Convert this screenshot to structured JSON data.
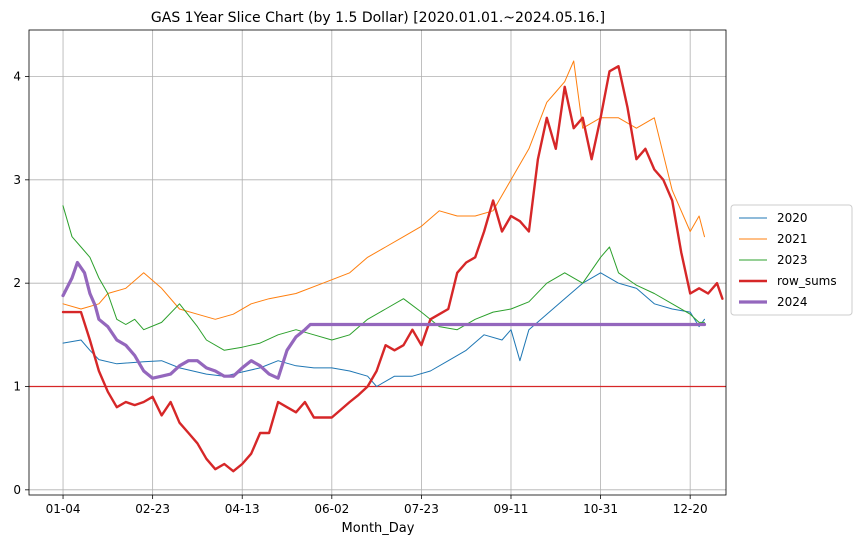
{
  "chart_data": {
    "type": "line",
    "title": "GAS 1Year Slice Chart (by 1.5 Dollar) [2020.01.01.~2024.05.16.]",
    "xlabel": "Month_Day",
    "ylabel": "",
    "x_ticks": [
      "01-04",
      "02-23",
      "04-13",
      "06-02",
      "07-23",
      "09-11",
      "10-31",
      "12-20"
    ],
    "y_ticks": [
      "0",
      "1",
      "2",
      "3",
      "4"
    ],
    "ylim": [
      -0.05,
      4.45
    ],
    "x_range_days": [
      -19,
      370
    ],
    "grid": true,
    "legend_position": "center-right (outside)",
    "reference_line": {
      "y": 1.0,
      "color": "#d62728"
    },
    "series": [
      {
        "name": "2020",
        "color": "#1f77b4",
        "width": 1.0,
        "points": [
          [
            0,
            1.42
          ],
          [
            10,
            1.45
          ],
          [
            15,
            1.35
          ],
          [
            20,
            1.26
          ],
          [
            30,
            1.22
          ],
          [
            45,
            1.24
          ],
          [
            55,
            1.25
          ],
          [
            65,
            1.18
          ],
          [
            80,
            1.12
          ],
          [
            90,
            1.1
          ],
          [
            100,
            1.14
          ],
          [
            110,
            1.18
          ],
          [
            120,
            1.25
          ],
          [
            130,
            1.2
          ],
          [
            140,
            1.18
          ],
          [
            150,
            1.18
          ],
          [
            160,
            1.15
          ],
          [
            170,
            1.1
          ],
          [
            175,
            1.0
          ],
          [
            185,
            1.1
          ],
          [
            195,
            1.1
          ],
          [
            205,
            1.15
          ],
          [
            215,
            1.25
          ],
          [
            225,
            1.35
          ],
          [
            235,
            1.5
          ],
          [
            245,
            1.45
          ],
          [
            250,
            1.55
          ],
          [
            255,
            1.25
          ],
          [
            260,
            1.55
          ],
          [
            270,
            1.7
          ],
          [
            280,
            1.85
          ],
          [
            290,
            2.0
          ],
          [
            300,
            2.1
          ],
          [
            310,
            2.0
          ],
          [
            320,
            1.95
          ],
          [
            330,
            1.8
          ],
          [
            340,
            1.75
          ],
          [
            350,
            1.72
          ],
          [
            355,
            1.58
          ],
          [
            358,
            1.65
          ]
        ]
      },
      {
        "name": "2021",
        "color": "#ff7f0e",
        "width": 1.0,
        "points": [
          [
            0,
            1.8
          ],
          [
            10,
            1.75
          ],
          [
            20,
            1.8
          ],
          [
            25,
            1.9
          ],
          [
            35,
            1.95
          ],
          [
            45,
            2.1
          ],
          [
            55,
            1.95
          ],
          [
            65,
            1.75
          ],
          [
            75,
            1.7
          ],
          [
            85,
            1.65
          ],
          [
            95,
            1.7
          ],
          [
            105,
            1.8
          ],
          [
            115,
            1.85
          ],
          [
            130,
            1.9
          ],
          [
            145,
            2.0
          ],
          [
            160,
            2.1
          ],
          [
            170,
            2.25
          ],
          [
            180,
            2.35
          ],
          [
            190,
            2.45
          ],
          [
            200,
            2.55
          ],
          [
            210,
            2.7
          ],
          [
            220,
            2.65
          ],
          [
            230,
            2.65
          ],
          [
            240,
            2.7
          ],
          [
            250,
            3.0
          ],
          [
            260,
            3.3
          ],
          [
            270,
            3.75
          ],
          [
            275,
            3.85
          ],
          [
            280,
            3.95
          ],
          [
            285,
            4.15
          ],
          [
            290,
            3.5
          ],
          [
            300,
            3.6
          ],
          [
            310,
            3.6
          ],
          [
            320,
            3.5
          ],
          [
            330,
            3.6
          ],
          [
            340,
            2.9
          ],
          [
            350,
            2.5
          ],
          [
            355,
            2.65
          ],
          [
            358,
            2.45
          ]
        ]
      },
      {
        "name": "2023",
        "color": "#2ca02c",
        "width": 1.0,
        "points": [
          [
            0,
            2.75
          ],
          [
            5,
            2.45
          ],
          [
            10,
            2.35
          ],
          [
            15,
            2.25
          ],
          [
            20,
            2.05
          ],
          [
            25,
            1.9
          ],
          [
            30,
            1.65
          ],
          [
            35,
            1.6
          ],
          [
            40,
            1.65
          ],
          [
            45,
            1.55
          ],
          [
            55,
            1.62
          ],
          [
            65,
            1.8
          ],
          [
            75,
            1.58
          ],
          [
            80,
            1.45
          ],
          [
            90,
            1.35
          ],
          [
            100,
            1.38
          ],
          [
            110,
            1.42
          ],
          [
            120,
            1.5
          ],
          [
            130,
            1.55
          ],
          [
            140,
            1.5
          ],
          [
            150,
            1.45
          ],
          [
            160,
            1.5
          ],
          [
            170,
            1.65
          ],
          [
            180,
            1.75
          ],
          [
            190,
            1.85
          ],
          [
            200,
            1.72
          ],
          [
            210,
            1.58
          ],
          [
            220,
            1.55
          ],
          [
            230,
            1.65
          ],
          [
            240,
            1.72
          ],
          [
            250,
            1.75
          ],
          [
            260,
            1.82
          ],
          [
            270,
            2.0
          ],
          [
            280,
            2.1
          ],
          [
            290,
            2.0
          ],
          [
            300,
            2.25
          ],
          [
            305,
            2.35
          ],
          [
            310,
            2.1
          ],
          [
            320,
            1.98
          ],
          [
            330,
            1.9
          ],
          [
            340,
            1.8
          ],
          [
            350,
            1.7
          ],
          [
            355,
            1.62
          ],
          [
            358,
            1.62
          ]
        ]
      },
      {
        "name": "row_sums",
        "color": "#d62728",
        "width": 2.4,
        "points": [
          [
            0,
            1.72
          ],
          [
            10,
            1.72
          ],
          [
            15,
            1.45
          ],
          [
            20,
            1.15
          ],
          [
            25,
            0.95
          ],
          [
            30,
            0.8
          ],
          [
            35,
            0.85
          ],
          [
            40,
            0.82
          ],
          [
            45,
            0.85
          ],
          [
            50,
            0.9
          ],
          [
            55,
            0.72
          ],
          [
            60,
            0.85
          ],
          [
            65,
            0.65
          ],
          [
            70,
            0.55
          ],
          [
            75,
            0.45
          ],
          [
            80,
            0.3
          ],
          [
            85,
            0.2
          ],
          [
            90,
            0.25
          ],
          [
            95,
            0.18
          ],
          [
            100,
            0.25
          ],
          [
            105,
            0.35
          ],
          [
            110,
            0.55
          ],
          [
            115,
            0.55
          ],
          [
            120,
            0.85
          ],
          [
            125,
            0.8
          ],
          [
            130,
            0.75
          ],
          [
            135,
            0.85
          ],
          [
            140,
            0.7
          ],
          [
            145,
            0.7
          ],
          [
            150,
            0.7
          ],
          [
            160,
            0.85
          ],
          [
            165,
            0.92
          ],
          [
            170,
            1.0
          ],
          [
            175,
            1.15
          ],
          [
            180,
            1.4
          ],
          [
            185,
            1.35
          ],
          [
            190,
            1.4
          ],
          [
            195,
            1.55
          ],
          [
            200,
            1.4
          ],
          [
            205,
            1.65
          ],
          [
            210,
            1.7
          ],
          [
            215,
            1.75
          ],
          [
            220,
            2.1
          ],
          [
            225,
            2.2
          ],
          [
            230,
            2.25
          ],
          [
            235,
            2.5
          ],
          [
            240,
            2.8
          ],
          [
            245,
            2.5
          ],
          [
            250,
            2.65
          ],
          [
            255,
            2.6
          ],
          [
            260,
            2.5
          ],
          [
            265,
            3.2
          ],
          [
            270,
            3.6
          ],
          [
            275,
            3.3
          ],
          [
            280,
            3.9
          ],
          [
            285,
            3.5
          ],
          [
            290,
            3.6
          ],
          [
            295,
            3.2
          ],
          [
            300,
            3.6
          ],
          [
            305,
            4.05
          ],
          [
            310,
            4.1
          ],
          [
            315,
            3.7
          ],
          [
            320,
            3.2
          ],
          [
            325,
            3.3
          ],
          [
            330,
            3.1
          ],
          [
            335,
            3.0
          ],
          [
            340,
            2.8
          ],
          [
            345,
            2.3
          ],
          [
            350,
            1.9
          ],
          [
            355,
            1.95
          ],
          [
            360,
            1.9
          ],
          [
            365,
            2.0
          ],
          [
            368,
            1.85
          ]
        ]
      },
      {
        "name": "2024",
        "color": "#9467bd",
        "width": 3.2,
        "points": [
          [
            0,
            1.88
          ],
          [
            5,
            2.05
          ],
          [
            8,
            2.2
          ],
          [
            12,
            2.1
          ],
          [
            15,
            1.9
          ],
          [
            18,
            1.78
          ],
          [
            20,
            1.65
          ],
          [
            25,
            1.58
          ],
          [
            30,
            1.45
          ],
          [
            35,
            1.4
          ],
          [
            40,
            1.3
          ],
          [
            45,
            1.15
          ],
          [
            50,
            1.08
          ],
          [
            55,
            1.1
          ],
          [
            60,
            1.12
          ],
          [
            65,
            1.2
          ],
          [
            70,
            1.25
          ],
          [
            75,
            1.25
          ],
          [
            80,
            1.18
          ],
          [
            85,
            1.15
          ],
          [
            90,
            1.1
          ],
          [
            95,
            1.1
          ],
          [
            100,
            1.18
          ],
          [
            105,
            1.25
          ],
          [
            110,
            1.2
          ],
          [
            115,
            1.12
          ],
          [
            120,
            1.08
          ],
          [
            125,
            1.35
          ],
          [
            130,
            1.48
          ],
          [
            135,
            1.55
          ],
          [
            138,
            1.6
          ],
          [
            358,
            1.6
          ]
        ]
      }
    ]
  }
}
